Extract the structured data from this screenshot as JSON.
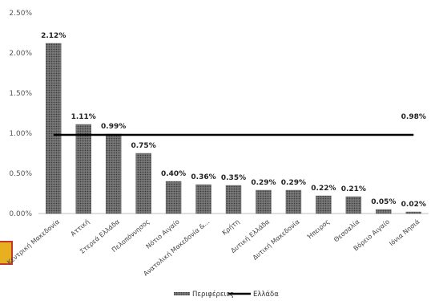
{
  "chart_data": {
    "type": "bar",
    "categories": [
      "Κεντρική Μακεδονία",
      "Αττική",
      "Στερεά Ελλάδα",
      "Πελοπόννησος",
      "Νότιο Αιγαίο",
      "Ανατολική Μακεδονία &...",
      "Κρήτη",
      "Δυτική Ελλάδα",
      "Δυτική Μακεδονία",
      "Ήπειρος",
      "Θεσσαλία",
      "Βόρειο Αιγαίο",
      "Ιόνια Νησιά"
    ],
    "series": [
      {
        "name": "Περιφέρειες",
        "values": [
          2.12,
          1.11,
          0.99,
          0.75,
          0.4,
          0.36,
          0.35,
          0.29,
          0.29,
          0.22,
          0.21,
          0.05,
          0.02
        ],
        "labels": [
          "2.12%",
          "1.11%",
          "0.99%",
          "0.75%",
          "0.40%",
          "0.36%",
          "0.35%",
          "0.29%",
          "0.29%",
          "0.22%",
          "0.21%",
          "0.05%",
          "0.02%"
        ]
      }
    ],
    "reference_line": {
      "name": "Ελλάδα",
      "value": 0.98,
      "label": "0.98%"
    },
    "yticks": [
      "0.00%",
      "0.50%",
      "1.00%",
      "1.50%",
      "2.00%",
      "2.50%"
    ],
    "ylim": [
      0,
      2.5
    ],
    "ystep": 0.5,
    "grid": false,
    "legend_position": "bottom",
    "colors": {
      "bar": "#5a5a5a",
      "line": "#000000"
    }
  }
}
